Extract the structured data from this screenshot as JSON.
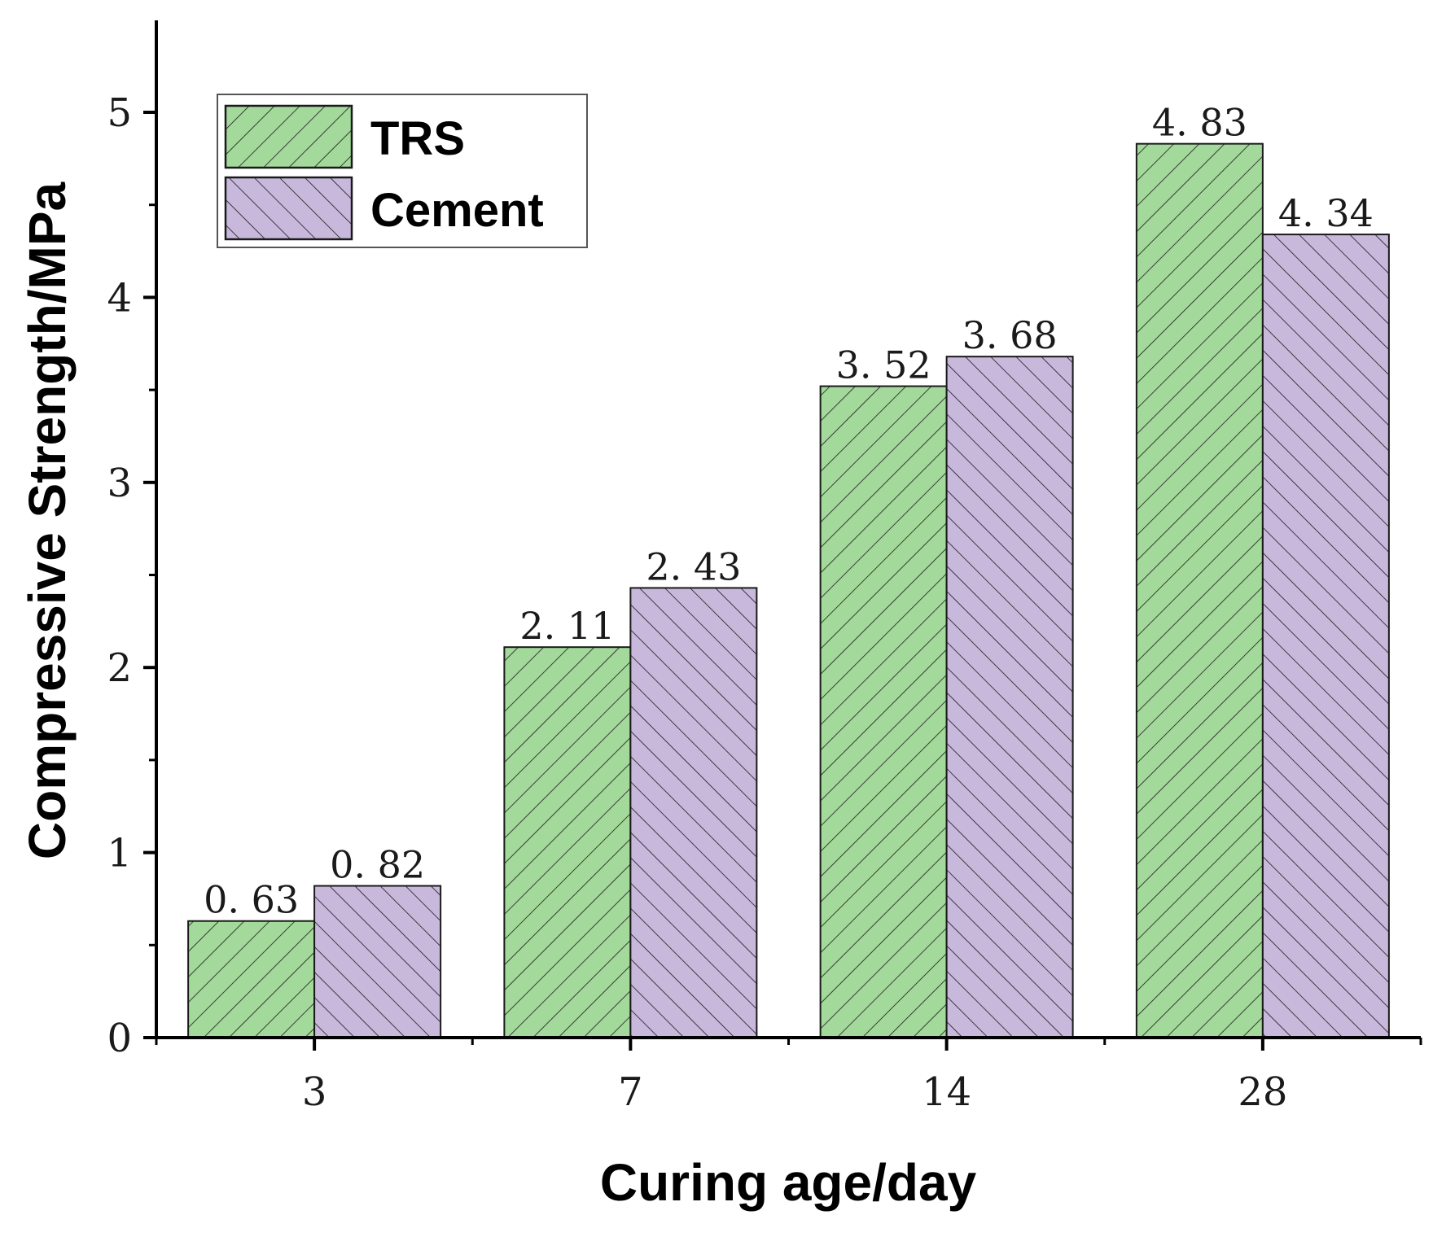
{
  "chart_data": {
    "type": "bar",
    "title": "",
    "xlabel": "Curing age/day",
    "ylabel": "Compressive Strength/MPa",
    "categories": [
      "3",
      "7",
      "14",
      "28"
    ],
    "ylim": [
      0,
      5.5
    ],
    "yticks": [
      0,
      1,
      2,
      3,
      4,
      5
    ],
    "ytick_labels": [
      "0",
      "1",
      "2",
      "3",
      "4",
      "5"
    ],
    "grid": false,
    "legend_position": "top-left",
    "series": [
      {
        "name": "TRS",
        "color": "#a3d99a",
        "hatch": "forward-diagonal",
        "values": [
          0.63,
          2.11,
          3.52,
          4.83
        ],
        "labels": [
          "0. 63",
          "2. 11",
          "3. 52",
          "4. 83"
        ]
      },
      {
        "name": "Cement",
        "color": "#c8b8dc",
        "hatch": "backward-diagonal",
        "values": [
          0.82,
          2.43,
          3.68,
          4.34
        ],
        "labels": [
          "0. 82",
          "2. 43",
          "3. 68",
          "4. 34"
        ]
      }
    ]
  }
}
